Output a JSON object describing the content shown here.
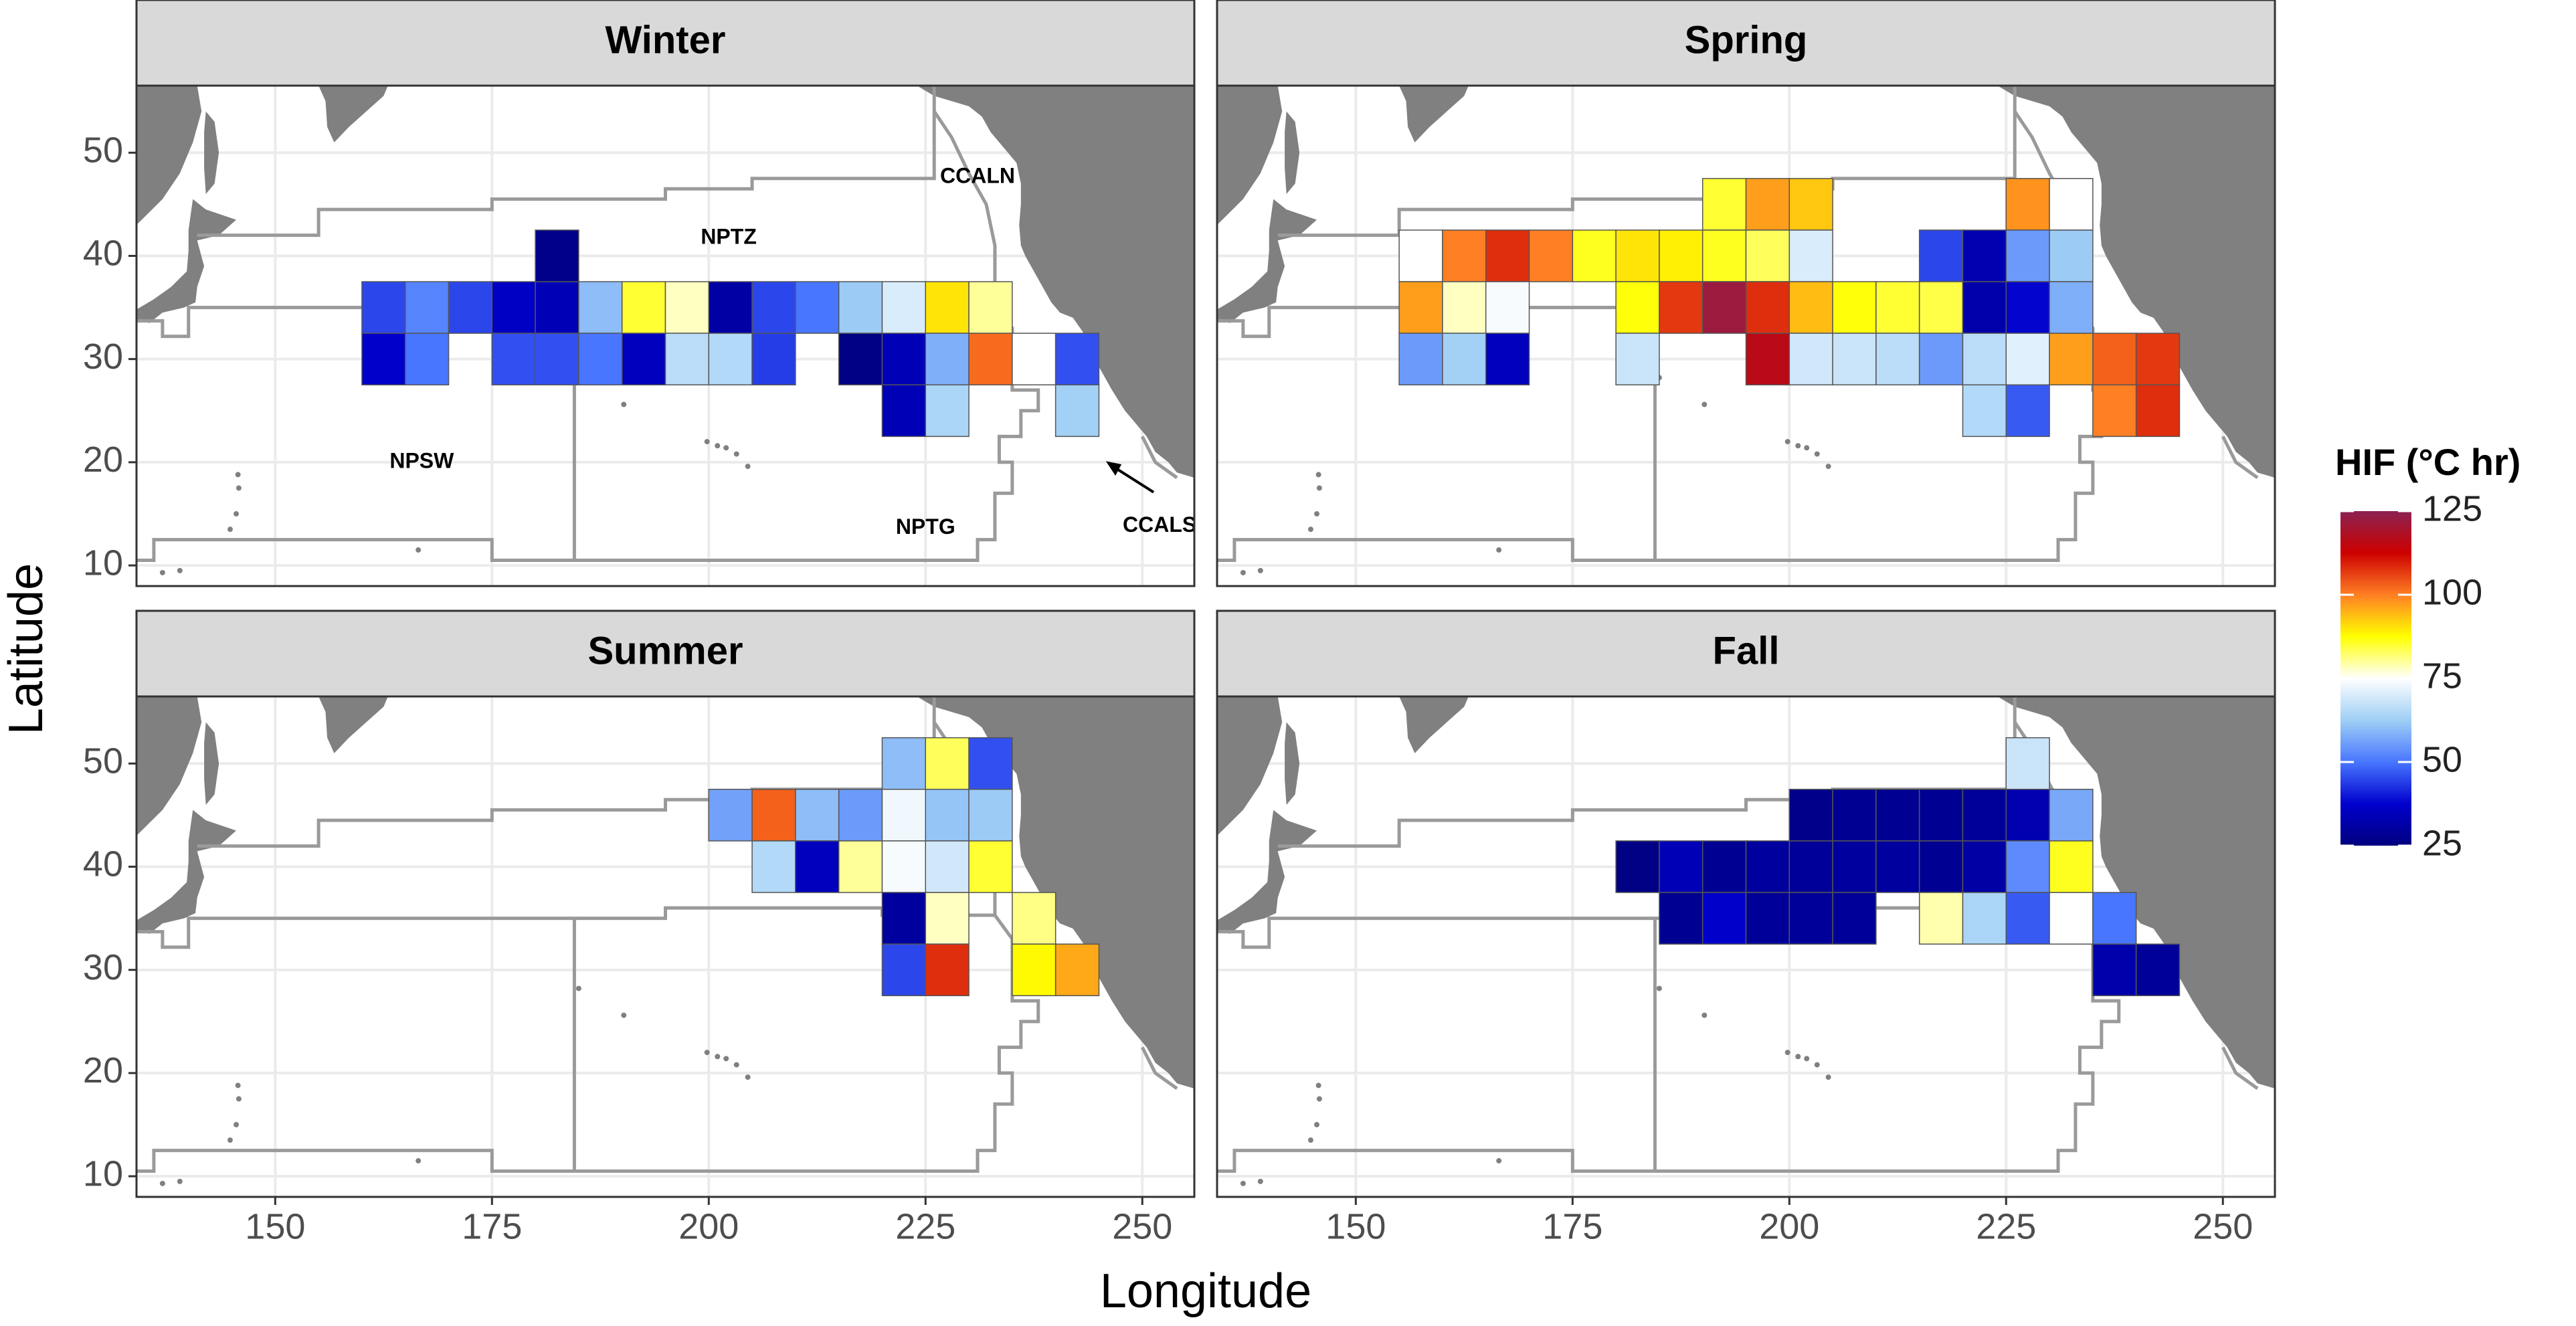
{
  "shared": {
    "xlabel": "Longitude",
    "ylabel": "Latitude",
    "colorbar_title": "HIF (°C hr)",
    "clim": [
      25,
      125
    ],
    "cticks": [
      25,
      50,
      75,
      100,
      125
    ],
    "colorscale": [
      [
        25,
        "#00007F"
      ],
      [
        37.5,
        "#0000CD"
      ],
      [
        50,
        "#4876FF"
      ],
      [
        62.5,
        "#9FCFF5"
      ],
      [
        75,
        "#FFFFFF"
      ],
      [
        87.5,
        "#FFFF00"
      ],
      [
        100,
        "#FF7F24"
      ],
      [
        112.5,
        "#CD0000"
      ],
      [
        125,
        "#8B2252"
      ]
    ],
    "annotations": [
      "NPTZ",
      "CCALN",
      "NPSW",
      "NPTG",
      "CCALS"
    ]
  },
  "chart_data": [
    {
      "type": "heatmap",
      "title": "Winter",
      "xlim": [
        134,
        256
      ],
      "ylim": [
        8,
        56.5
      ],
      "xticks": [
        150,
        175,
        200,
        225,
        250
      ],
      "yticks": [
        10,
        20,
        30,
        40,
        50
      ],
      "x": [
        162.5,
        167.5,
        172.5,
        177.5,
        182.5,
        187.5,
        192.5,
        197.5,
        202.5,
        207.5,
        212.5,
        217.5,
        222.5,
        227.5,
        232.5,
        182.5,
        162.5,
        167.5,
        177.5,
        182.5,
        187.5,
        192.5,
        197.5,
        202.5,
        207.5,
        217.5,
        222.5,
        227.5,
        232.5,
        237.5,
        242.5,
        222.5,
        227.5,
        242.5
      ],
      "y": [
        35,
        35,
        35,
        35,
        35,
        35,
        35,
        35,
        35,
        35,
        35,
        35,
        35,
        35,
        35,
        40,
        30,
        30,
        30,
        30,
        30,
        30,
        30,
        30,
        30,
        30,
        30,
        30,
        30,
        30,
        30,
        25,
        25,
        25
      ],
      "values": [
        45,
        52,
        45,
        36,
        34,
        60,
        85,
        78,
        31,
        45,
        50,
        62,
        70,
        90,
        80,
        27,
        37,
        50,
        46,
        46,
        50,
        35,
        66,
        65,
        44,
        26,
        34,
        58,
        102,
        75,
        46,
        34,
        64,
        63
      ]
    },
    {
      "type": "heatmap",
      "title": "Spring",
      "xlim": [
        134,
        256
      ],
      "ylim": [
        8,
        56.5
      ],
      "xticks": [
        150,
        175,
        200,
        225,
        250
      ],
      "yticks": [
        10,
        20,
        30,
        40,
        50
      ],
      "x": [
        192.5,
        197.5,
        202.5,
        227.5,
        232.5,
        157.5,
        162.5,
        167.5,
        172.5,
        177.5,
        182.5,
        187.5,
        192.5,
        197.5,
        202.5,
        217.5,
        222.5,
        227.5,
        232.5,
        157.5,
        162.5,
        167.5,
        182.5,
        187.5,
        192.5,
        197.5,
        202.5,
        207.5,
        212.5,
        217.5,
        222.5,
        227.5,
        232.5,
        157.5,
        162.5,
        167.5,
        182.5,
        197.5,
        202.5,
        207.5,
        212.5,
        217.5,
        222.5,
        227.5,
        232.5,
        237.5,
        242.5,
        222.5,
        227.5,
        237.5,
        242.5
      ],
      "y": [
        45,
        45,
        45,
        45,
        45,
        40,
        40,
        40,
        40,
        40,
        40,
        40,
        40,
        40,
        40,
        40,
        40,
        40,
        40,
        35,
        35,
        35,
        35,
        35,
        35,
        35,
        35,
        35,
        35,
        35,
        35,
        35,
        35,
        30,
        30,
        30,
        30,
        30,
        30,
        30,
        30,
        30,
        30,
        30,
        30,
        30,
        30,
        25,
        25,
        25,
        25
      ],
      "values": [
        85,
        97,
        93,
        98,
        75,
        75,
        100,
        108,
        100,
        86,
        90,
        89,
        86,
        83,
        70,
        45,
        33,
        55,
        62,
        97,
        78,
        74,
        87,
        107,
        122,
        108,
        94,
        87,
        85,
        84,
        32,
        38,
        58,
        55,
        63,
        35,
        68,
        116,
        69,
        68,
        66,
        55,
        66,
        71,
        97,
        103,
        107,
        65,
        47,
        100,
        108
      ]
    },
    {
      "type": "heatmap",
      "title": "Summer",
      "xlim": [
        134,
        256
      ],
      "ylim": [
        8,
        56.5
      ],
      "xticks": [
        150,
        175,
        200,
        225,
        250
      ],
      "yticks": [
        10,
        20,
        30,
        40,
        50
      ],
      "x": [
        222.5,
        227.5,
        232.5,
        202.5,
        207.5,
        212.5,
        217.5,
        222.5,
        227.5,
        232.5,
        207.5,
        212.5,
        217.5,
        222.5,
        227.5,
        232.5,
        222.5,
        227.5,
        237.5,
        222.5,
        227.5,
        237.5,
        242.5
      ],
      "y": [
        50,
        50,
        50,
        45,
        45,
        45,
        45,
        45,
        45,
        45,
        40,
        40,
        40,
        40,
        40,
        40,
        35,
        35,
        35,
        30,
        30,
        30,
        30
      ],
      "values": [
        60,
        83,
        46,
        56,
        103,
        60,
        55,
        73,
        61,
        62,
        65,
        35,
        80,
        74,
        69,
        85,
        30,
        78,
        81,
        45,
        108,
        88,
        96
      ]
    },
    {
      "type": "heatmap",
      "title": "Fall",
      "xlim": [
        134,
        256
      ],
      "ylim": [
        8,
        56.5
      ],
      "xticks": [
        150,
        175,
        200,
        225,
        250
      ],
      "yticks": [
        10,
        20,
        30,
        40,
        50
      ],
      "x": [
        227.5,
        202.5,
        207.5,
        212.5,
        217.5,
        222.5,
        227.5,
        232.5,
        182.5,
        187.5,
        192.5,
        197.5,
        202.5,
        207.5,
        212.5,
        217.5,
        222.5,
        227.5,
        232.5,
        187.5,
        192.5,
        197.5,
        202.5,
        207.5,
        217.5,
        222.5,
        227.5,
        232.5,
        237.5,
        237.5,
        242.5
      ],
      "y": [
        50,
        45,
        45,
        45,
        45,
        45,
        45,
        45,
        40,
        40,
        40,
        40,
        40,
        40,
        40,
        40,
        40,
        40,
        40,
        35,
        35,
        35,
        35,
        35,
        35,
        35,
        35,
        35,
        35,
        30,
        30
      ],
      "values": [
        68,
        27,
        28,
        28,
        28,
        29,
        33,
        57,
        26,
        34,
        28,
        30,
        29,
        30,
        30,
        28,
        31,
        53,
        86,
        28,
        37,
        29,
        29,
        29,
        79,
        64,
        47,
        75,
        50,
        32,
        29
      ]
    }
  ]
}
